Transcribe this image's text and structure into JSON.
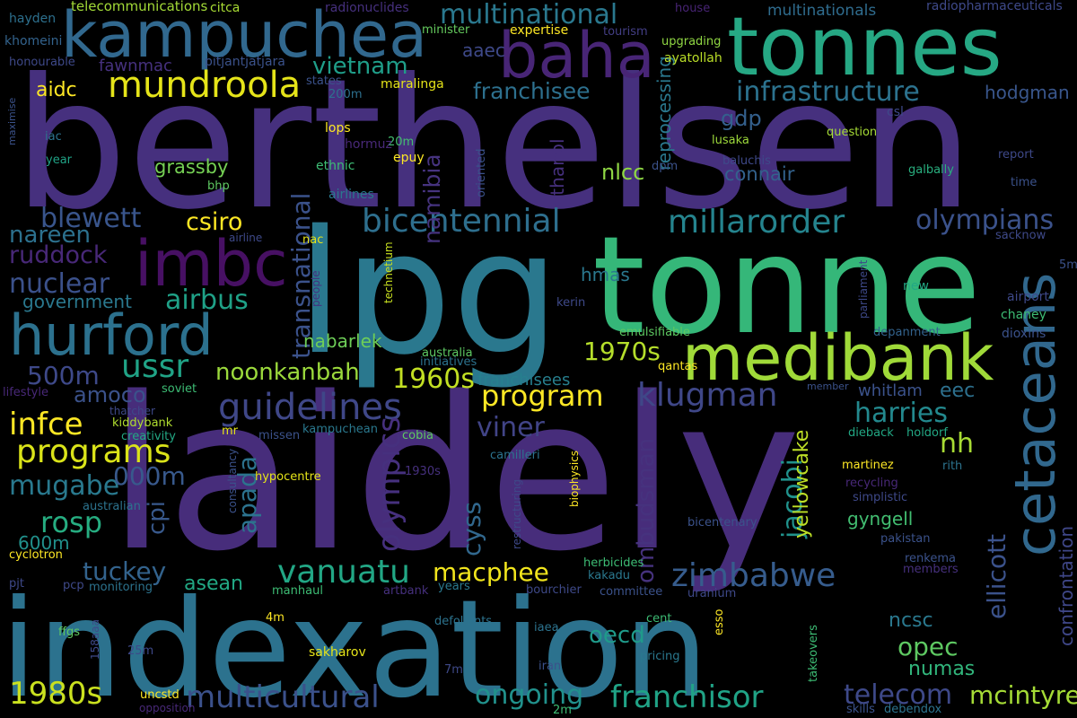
{
  "words": [
    {
      "text": "berthelsen",
      "color": "#46307e"
    },
    {
      "text": "laidely",
      "color": "#472d7b"
    },
    {
      "text": "lpg",
      "color": "#2a788e"
    },
    {
      "text": "tonne",
      "color": "#35b779"
    },
    {
      "text": "indexation",
      "color": "#2c728e"
    },
    {
      "text": "tonnes",
      "color": "#26a884"
    },
    {
      "text": "kampuchea",
      "color": "#31688e"
    },
    {
      "text": "baha",
      "color": "#482576"
    },
    {
      "text": "imbc",
      "color": "#471063"
    },
    {
      "text": "hurford",
      "color": "#2c718e"
    },
    {
      "text": "medibank",
      "color": "#a0da39"
    },
    {
      "text": "cetaceans",
      "color": "#31688e"
    },
    {
      "text": "mundroola",
      "color": "#e5e419"
    },
    {
      "text": "multinational",
      "color": "#2a788e"
    },
    {
      "text": "infrastructure",
      "color": "#2c728e"
    },
    {
      "text": "vietnam",
      "color": "#1f9e89"
    },
    {
      "text": "franchisee",
      "color": "#2d708e"
    },
    {
      "text": "aidc",
      "color": "#fde725"
    },
    {
      "text": "gdp",
      "color": "#34608d"
    },
    {
      "text": "connair",
      "color": "#33628d"
    },
    {
      "text": "hodgman",
      "color": "#39568c"
    },
    {
      "text": "bicentennial",
      "color": "#2e6f8e"
    },
    {
      "text": "millarorder",
      "color": "#25848e"
    },
    {
      "text": "olympians",
      "color": "#3b528b"
    },
    {
      "text": "blewett",
      "color": "#39558c"
    },
    {
      "text": "csiro",
      "color": "#fde725"
    },
    {
      "text": "nareen",
      "color": "#2c718e"
    },
    {
      "text": "ruddock",
      "color": "#482878"
    },
    {
      "text": "nuclear",
      "color": "#3b518b"
    },
    {
      "text": "airbus",
      "color": "#1fa187"
    },
    {
      "text": "government",
      "color": "#2a788e"
    },
    {
      "text": "transnational",
      "color": "#3b528b"
    },
    {
      "text": "namibia",
      "color": "#46337f"
    },
    {
      "text": "nlcc",
      "color": "#8fd744"
    },
    {
      "text": "grassby",
      "color": "#75d054"
    },
    {
      "text": "ussr",
      "color": "#20a386"
    },
    {
      "text": "noonkanbah",
      "color": "#9bd93c"
    },
    {
      "text": "1960s",
      "color": "#c2df23"
    },
    {
      "text": "1970s",
      "color": "#b5de2b"
    },
    {
      "text": "nabarlek",
      "color": "#6ece58"
    },
    {
      "text": "500m",
      "color": "#3e4989"
    },
    {
      "text": "amoco",
      "color": "#3b528b"
    },
    {
      "text": "guidelines",
      "color": "#3f4788"
    },
    {
      "text": "program",
      "color": "#fde725"
    },
    {
      "text": "klugman",
      "color": "#3f4788"
    },
    {
      "text": "harries",
      "color": "#23898e"
    },
    {
      "text": "infce",
      "color": "#fde725"
    },
    {
      "text": "programs",
      "color": "#dae319"
    },
    {
      "text": "viner",
      "color": "#414487"
    },
    {
      "text": "nh",
      "color": "#a8db34"
    },
    {
      "text": "mugabe",
      "color": "#29798e"
    },
    {
      "text": "000m",
      "color": "#38598c"
    },
    {
      "text": "rosp",
      "color": "#26ad81"
    },
    {
      "text": "apada",
      "color": "#2c738e"
    },
    {
      "text": "olympics",
      "color": "#46307e"
    },
    {
      "text": "cyss",
      "color": "#31688e"
    },
    {
      "text": "jacobi",
      "color": "#20928c"
    },
    {
      "text": "yellowcake",
      "color": "#bddf26"
    },
    {
      "text": "ombudsman",
      "color": "#46327e"
    },
    {
      "text": "gyngell",
      "color": "#42be71"
    },
    {
      "text": "ellicott",
      "color": "#3b528b"
    },
    {
      "text": "tuckey",
      "color": "#33638d"
    },
    {
      "text": "asean",
      "color": "#22a884"
    },
    {
      "text": "vanuatu",
      "color": "#22a785"
    },
    {
      "text": "macphee",
      "color": "#f1e51d"
    },
    {
      "text": "zimbabwe",
      "color": "#365c8d"
    },
    {
      "text": "600m",
      "color": "#21918c"
    },
    {
      "text": "oecd",
      "color": "#1f9a8a"
    },
    {
      "text": "opec",
      "color": "#5ec962"
    },
    {
      "text": "ncsc",
      "color": "#2a788e"
    },
    {
      "text": "1980s",
      "color": "#cae11f"
    },
    {
      "text": "multicultural",
      "color": "#3b518b"
    },
    {
      "text": "ongoing",
      "color": "#21918c"
    },
    {
      "text": "franchisor",
      "color": "#20a386"
    },
    {
      "text": "telecom",
      "color": "#3e4989"
    },
    {
      "text": "numas",
      "color": "#31b57b"
    },
    {
      "text": "mcintyres",
      "color": "#a5db36"
    },
    {
      "text": "confrontation",
      "color": "#3f4788"
    },
    {
      "text": "cpi",
      "color": "#38598c"
    },
    {
      "text": "eec",
      "color": "#2d708e"
    },
    {
      "text": "whitlam",
      "color": "#3b528b"
    },
    {
      "text": "franchisees",
      "color": "#277f8e"
    },
    {
      "text": "reprocessing",
      "color": "#2a788e"
    },
    {
      "text": "ethanol",
      "color": "#46307e"
    },
    {
      "text": "hmas",
      "color": "#2a788e"
    },
    {
      "text": "aaec",
      "color": "#3e4989"
    },
    {
      "text": "fawnmac",
      "color": "#46317e"
    },
    {
      "text": "telecommunications",
      "color": "#a2da37"
    },
    {
      "text": "citca",
      "color": "#a8db34"
    },
    {
      "text": "radionuclides",
      "color": "#46307e"
    },
    {
      "text": "hayden",
      "color": "#2d708e"
    },
    {
      "text": "khomeini",
      "color": "#33638d"
    },
    {
      "text": "honourable",
      "color": "#3e4989"
    },
    {
      "text": "pitjantjatjara",
      "color": "#3b528b"
    },
    {
      "text": "minister",
      "color": "#65cb5e"
    },
    {
      "text": "expertise",
      "color": "#fde725"
    },
    {
      "text": "house",
      "color": "#482475"
    },
    {
      "text": "tourism",
      "color": "#433e85"
    },
    {
      "text": "upgrading",
      "color": "#90d743"
    },
    {
      "text": "ayatollah",
      "color": "#bade28"
    },
    {
      "text": "multinationals",
      "color": "#2f6c8e"
    },
    {
      "text": "radiopharmaceuticals",
      "color": "#3e4989"
    },
    {
      "text": "states",
      "color": "#3b528b"
    },
    {
      "text": "200m",
      "color": "#2d708e"
    },
    {
      "text": "maralinga",
      "color": "#e5e419"
    },
    {
      "text": "lops",
      "color": "#fde725"
    },
    {
      "text": "20m",
      "color": "#44bf70"
    },
    {
      "text": "hormuz",
      "color": "#482878"
    },
    {
      "text": "epuy",
      "color": "#fde725"
    },
    {
      "text": "ethnic",
      "color": "#3dbc74"
    },
    {
      "text": "oriented",
      "color": "#3b528b"
    },
    {
      "text": "dpm",
      "color": "#3b528b"
    },
    {
      "text": "lusaka",
      "color": "#9dd93b"
    },
    {
      "text": "baluchis",
      "color": "#3e4989"
    },
    {
      "text": "question",
      "color": "#a5db36"
    },
    {
      "text": "report",
      "color": "#3e4989"
    },
    {
      "text": "csl",
      "color": "#3e4989"
    },
    {
      "text": "time",
      "color": "#3b528b"
    },
    {
      "text": "galbally",
      "color": "#29af7f"
    },
    {
      "text": "maximise",
      "color": "#3b528b"
    },
    {
      "text": "iac",
      "color": "#2c738e"
    },
    {
      "text": "year",
      "color": "#20a386"
    },
    {
      "text": "bhp",
      "color": "#5ec962"
    },
    {
      "text": "airlines",
      "color": "#2a788e"
    },
    {
      "text": "airline",
      "color": "#3e4989"
    },
    {
      "text": "nac",
      "color": "#e5e419"
    },
    {
      "text": "technetium",
      "color": "#c8e020"
    },
    {
      "text": "people",
      "color": "#46307e"
    },
    {
      "text": "parliament",
      "color": "#3e4989"
    },
    {
      "text": "sacknow",
      "color": "#3e4989"
    },
    {
      "text": "5m",
      "color": "#3b528b"
    },
    {
      "text": "new",
      "color": "#22a884"
    },
    {
      "text": "airport",
      "color": "#3e4989"
    },
    {
      "text": "chaney",
      "color": "#3dbc74"
    },
    {
      "text": "dioxins",
      "color": "#3b528b"
    },
    {
      "text": "depanment",
      "color": "#33638d"
    },
    {
      "text": "kerin",
      "color": "#3e4989"
    },
    {
      "text": "emulsifiable",
      "color": "#5ec962"
    },
    {
      "text": "australia",
      "color": "#5ec962"
    },
    {
      "text": "initiatives",
      "color": "#2c728e"
    },
    {
      "text": "qantas",
      "color": "#fde725"
    },
    {
      "text": "lifestyle",
      "color": "#482878"
    },
    {
      "text": "soviet",
      "color": "#3dbc74"
    },
    {
      "text": "member",
      "color": "#3b528b"
    },
    {
      "text": "thatcher",
      "color": "#3e4989"
    },
    {
      "text": "kiddybank",
      "color": "#b0dd2f"
    },
    {
      "text": "creativity",
      "color": "#22a884"
    },
    {
      "text": "mr",
      "color": "#e5e419"
    },
    {
      "text": "missen",
      "color": "#3b528b"
    },
    {
      "text": "kampuchean",
      "color": "#2a788e"
    },
    {
      "text": "cobia",
      "color": "#5ec962"
    },
    {
      "text": "dieback",
      "color": "#22a884"
    },
    {
      "text": "holdorf",
      "color": "#22a884"
    },
    {
      "text": "consultancy",
      "color": "#3b528b"
    },
    {
      "text": "hypocentre",
      "color": "#e5e419"
    },
    {
      "text": "1930s",
      "color": "#46307e"
    },
    {
      "text": "camilleri",
      "color": "#2c738e"
    },
    {
      "text": "restructuring",
      "color": "#3e4989"
    },
    {
      "text": "biophysics",
      "color": "#fde725"
    },
    {
      "text": "martinez",
      "color": "#fde725"
    },
    {
      "text": "rith",
      "color": "#2c738e"
    },
    {
      "text": "recycling",
      "color": "#482878"
    },
    {
      "text": "simplistic",
      "color": "#3e4989"
    },
    {
      "text": "australian",
      "color": "#2c738e"
    },
    {
      "text": "bicentenary",
      "color": "#3b528b"
    },
    {
      "text": "pakistan",
      "color": "#3b528b"
    },
    {
      "text": "cyclotron",
      "color": "#fde725"
    },
    {
      "text": "herbicides",
      "color": "#3dbc74"
    },
    {
      "text": "kakadu",
      "color": "#2a788e"
    },
    {
      "text": "renkema",
      "color": "#3b528b"
    },
    {
      "text": "members",
      "color": "#46307e"
    },
    {
      "text": "pjt",
      "color": "#3e4989"
    },
    {
      "text": "pcp",
      "color": "#3e4989"
    },
    {
      "text": "monitoring",
      "color": "#2c738e"
    },
    {
      "text": "manhaul",
      "color": "#3dbc74"
    },
    {
      "text": "artbank",
      "color": "#46307e"
    },
    {
      "text": "years",
      "color": "#2a788e"
    },
    {
      "text": "bourchier",
      "color": "#3e4989"
    },
    {
      "text": "committee",
      "color": "#3b528b"
    },
    {
      "text": "uranium",
      "color": "#3e4989"
    },
    {
      "text": "ffgs",
      "color": "#5ec962"
    },
    {
      "text": "158aaa",
      "color": "#3e4989"
    },
    {
      "text": "4m",
      "color": "#fde725"
    },
    {
      "text": "defoliants",
      "color": "#2c738e"
    },
    {
      "text": "iaea",
      "color": "#2c738e"
    },
    {
      "text": "cent",
      "color": "#3dbc74"
    },
    {
      "text": "esso",
      "color": "#fde725"
    },
    {
      "text": "takeovers",
      "color": "#3dbc74"
    },
    {
      "text": "25m",
      "color": "#3e4989"
    },
    {
      "text": "sakharov",
      "color": "#e5e419"
    },
    {
      "text": "7m",
      "color": "#3e4989"
    },
    {
      "text": "pricing",
      "color": "#2a788e"
    },
    {
      "text": "iran",
      "color": "#3b528b"
    },
    {
      "text": "uncstd",
      "color": "#fde725"
    },
    {
      "text": "opposition",
      "color": "#482878"
    },
    {
      "text": "2m",
      "color": "#3dbc74"
    },
    {
      "text": "skills",
      "color": "#3b528b"
    },
    {
      "text": "debendox",
      "color": "#2c738e"
    }
  ]
}
